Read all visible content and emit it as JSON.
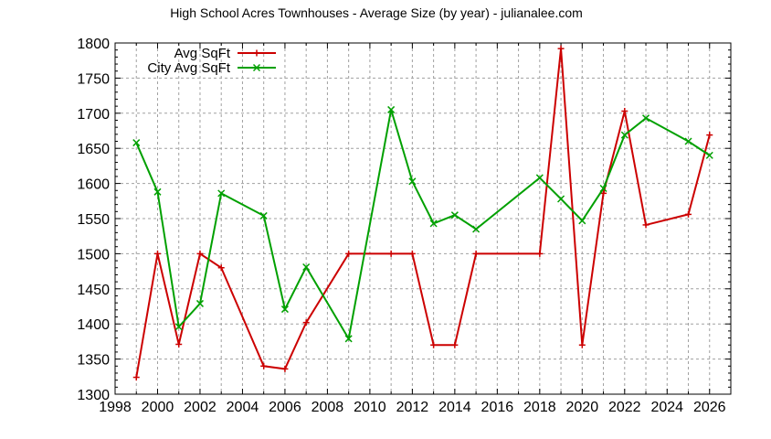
{
  "chart_data": {
    "type": "line",
    "title": "High School Acres Townhouses - Average Size (by year) - julianalee.com",
    "xlabel": "",
    "ylabel": "",
    "xlim": [
      1998,
      2027
    ],
    "ylim": [
      1300,
      1800
    ],
    "x_ticks": [
      1998,
      2000,
      2002,
      2004,
      2006,
      2008,
      2010,
      2012,
      2014,
      2016,
      2018,
      2020,
      2022,
      2024,
      2026
    ],
    "y_ticks": [
      1300,
      1350,
      1400,
      1450,
      1500,
      1550,
      1600,
      1650,
      1700,
      1750,
      1800
    ],
    "grid": true,
    "legend_position": "top-left",
    "series": [
      {
        "name": "Avg SqFt",
        "color": "#cc0000",
        "marker": "plus",
        "x": [
          1999,
          2000,
          2001,
          2002,
          2003,
          2005,
          2006,
          2007,
          2009,
          2011,
          2012,
          2013,
          2014,
          2015,
          2018,
          2019,
          2020,
          2021,
          2022,
          2023,
          2025,
          2026
        ],
        "values": [
          1324,
          1500,
          1371,
          1500,
          1480,
          1340,
          1336,
          1402,
          1500,
          1500,
          1500,
          1370,
          1370,
          1500,
          1500,
          1792,
          1370,
          1586,
          1703,
          1541,
          1556,
          1669
        ]
      },
      {
        "name": "City Avg SqFt",
        "color": "#00a000",
        "marker": "cross",
        "x": [
          1999,
          2000,
          2001,
          2002,
          2003,
          2005,
          2006,
          2007,
          2009,
          2011,
          2012,
          2013,
          2014,
          2015,
          2018,
          2019,
          2020,
          2021,
          2022,
          2023,
          2025,
          2026
        ],
        "values": [
          1658,
          1588,
          1396,
          1429,
          1586,
          1554,
          1421,
          1481,
          1379,
          1705,
          1603,
          1543,
          1555,
          1535,
          1608,
          1578,
          1547,
          1593,
          1669,
          1693,
          1660,
          1640
        ]
      }
    ]
  },
  "legend": {
    "items": [
      {
        "label": "Avg SqFt",
        "color": "#cc0000"
      },
      {
        "label": "City Avg SqFt",
        "color": "#00a000"
      }
    ]
  }
}
